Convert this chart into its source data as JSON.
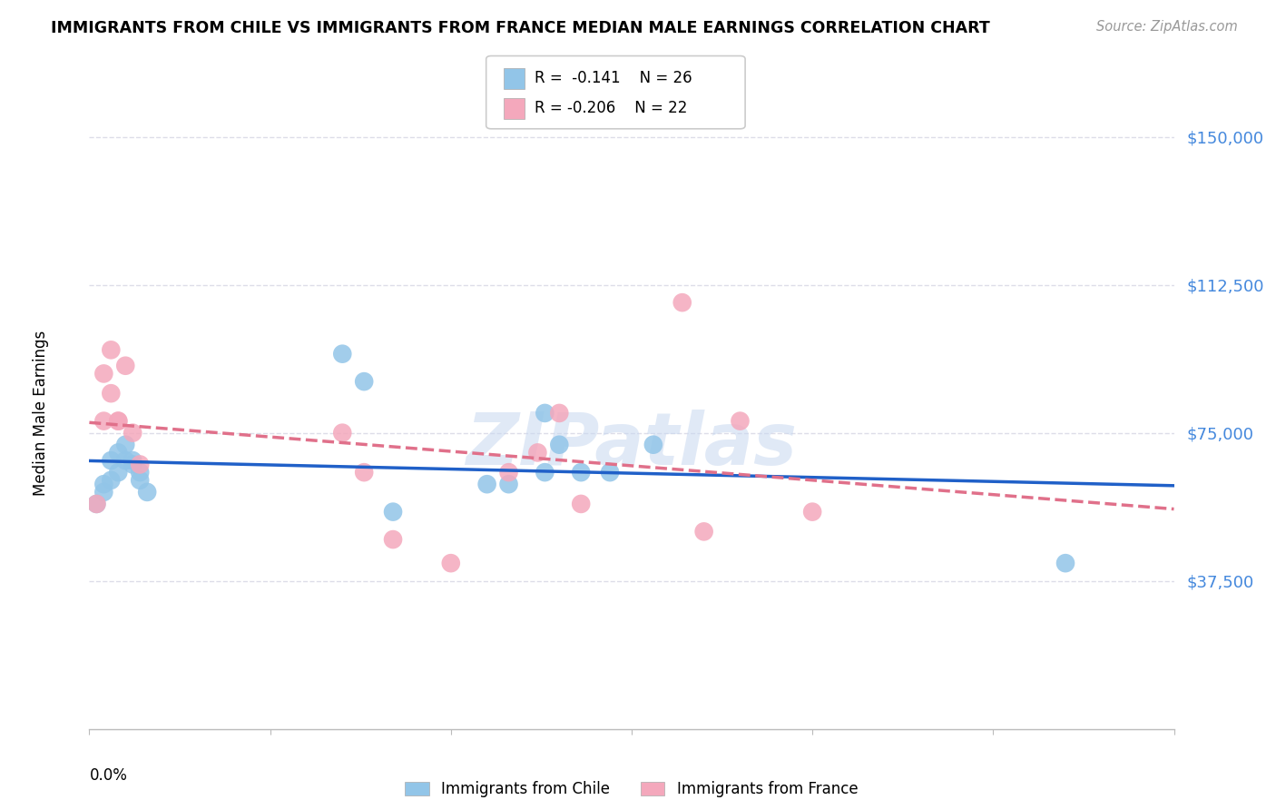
{
  "title": "IMMIGRANTS FROM CHILE VS IMMIGRANTS FROM FRANCE MEDIAN MALE EARNINGS CORRELATION CHART",
  "source": "Source: ZipAtlas.com",
  "ylabel": "Median Male Earnings",
  "ytick_labels": [
    "$150,000",
    "$112,500",
    "$75,000",
    "$37,500"
  ],
  "ytick_values": [
    150000,
    112500,
    75000,
    37500
  ],
  "ymin": 0,
  "ymax": 160000,
  "xmin": 0.0,
  "xmax": 0.15,
  "chile_color": "#92C5E8",
  "france_color": "#F4A8BC",
  "chile_line_color": "#2060C8",
  "france_line_color": "#E0708A",
  "watermark_text": "ZIPatlas",
  "chile_x": [
    0.001,
    0.002,
    0.002,
    0.003,
    0.003,
    0.004,
    0.004,
    0.005,
    0.005,
    0.006,
    0.006,
    0.007,
    0.007,
    0.008,
    0.035,
    0.038,
    0.042,
    0.055,
    0.058,
    0.063,
    0.063,
    0.065,
    0.068,
    0.072,
    0.078,
    0.135
  ],
  "chile_y": [
    57000,
    62000,
    60000,
    68000,
    63000,
    65000,
    70000,
    68000,
    72000,
    67000,
    68000,
    65000,
    63000,
    60000,
    95000,
    88000,
    55000,
    62000,
    62000,
    80000,
    65000,
    72000,
    65000,
    65000,
    72000,
    42000
  ],
  "france_x": [
    0.001,
    0.002,
    0.002,
    0.003,
    0.003,
    0.004,
    0.004,
    0.005,
    0.006,
    0.007,
    0.035,
    0.038,
    0.042,
    0.05,
    0.058,
    0.062,
    0.065,
    0.068,
    0.082,
    0.085,
    0.09,
    0.1
  ],
  "france_y": [
    57000,
    78000,
    90000,
    85000,
    96000,
    78000,
    78000,
    92000,
    75000,
    67000,
    75000,
    65000,
    48000,
    42000,
    65000,
    70000,
    80000,
    57000,
    108000,
    50000,
    78000,
    55000
  ],
  "grid_color": "#DDDDE8",
  "background_color": "#FFFFFF",
  "legend_r_chile": "R =  -0.141",
  "legend_n_chile": "N = 26",
  "legend_r_france": "R = -0.206",
  "legend_n_france": "N = 22"
}
